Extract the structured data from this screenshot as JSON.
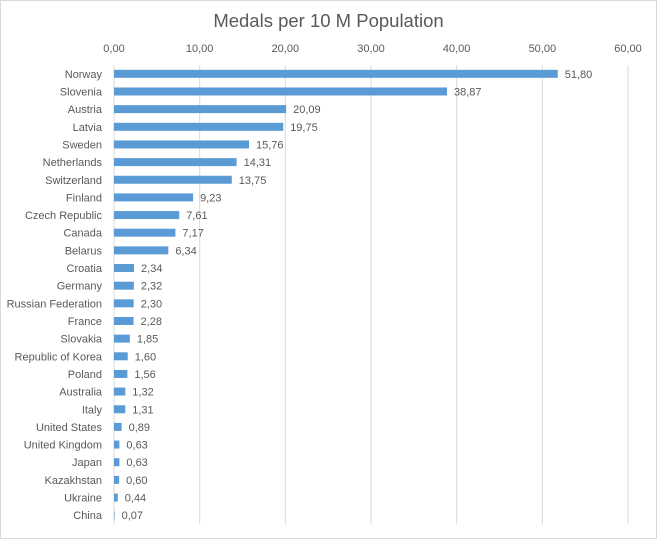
{
  "chart_data": {
    "type": "bar",
    "orientation": "horizontal",
    "title": "Medals per 10 M Population",
    "xlabel": "",
    "ylabel": "",
    "xlim": [
      0,
      60
    ],
    "x_ticks": [
      "0,00",
      "10,00",
      "20,00",
      "30,00",
      "40,00",
      "50,00",
      "60,00"
    ],
    "x_axis_position": "top",
    "grid": true,
    "bar_color": "#5b9bd5",
    "categories": [
      "Norway",
      "Slovenia",
      "Austria",
      "Latvia",
      "Sweden",
      "Netherlands",
      "Switzerland",
      "Finland",
      "Czech Republic",
      "Canada",
      "Belarus",
      "Croatia",
      "Germany",
      "Russian Federation",
      "France",
      "Slovakia",
      "Republic of Korea",
      "Poland",
      "Australia",
      "Italy",
      "United States",
      "United Kingdom",
      "Japan",
      "Kazakhstan",
      "Ukraine",
      "China"
    ],
    "values": [
      51.8,
      38.87,
      20.09,
      19.75,
      15.76,
      14.31,
      13.75,
      9.23,
      7.61,
      7.17,
      6.34,
      2.34,
      2.32,
      2.3,
      2.28,
      1.85,
      1.6,
      1.56,
      1.32,
      1.31,
      0.89,
      0.63,
      0.63,
      0.6,
      0.44,
      0.07
    ],
    "data_labels": [
      "51,80",
      "38,87",
      "20,09",
      "19,75",
      "15,76",
      "14,31",
      "13,75",
      "9,23",
      "7,61",
      "7,17",
      "6,34",
      "2,34",
      "2,32",
      "2,30",
      "2,28",
      "1,85",
      "1,60",
      "1,56",
      "1,32",
      "1,31",
      "0,89",
      "0,63",
      "0,63",
      "0,60",
      "0,44",
      "0,07"
    ]
  }
}
